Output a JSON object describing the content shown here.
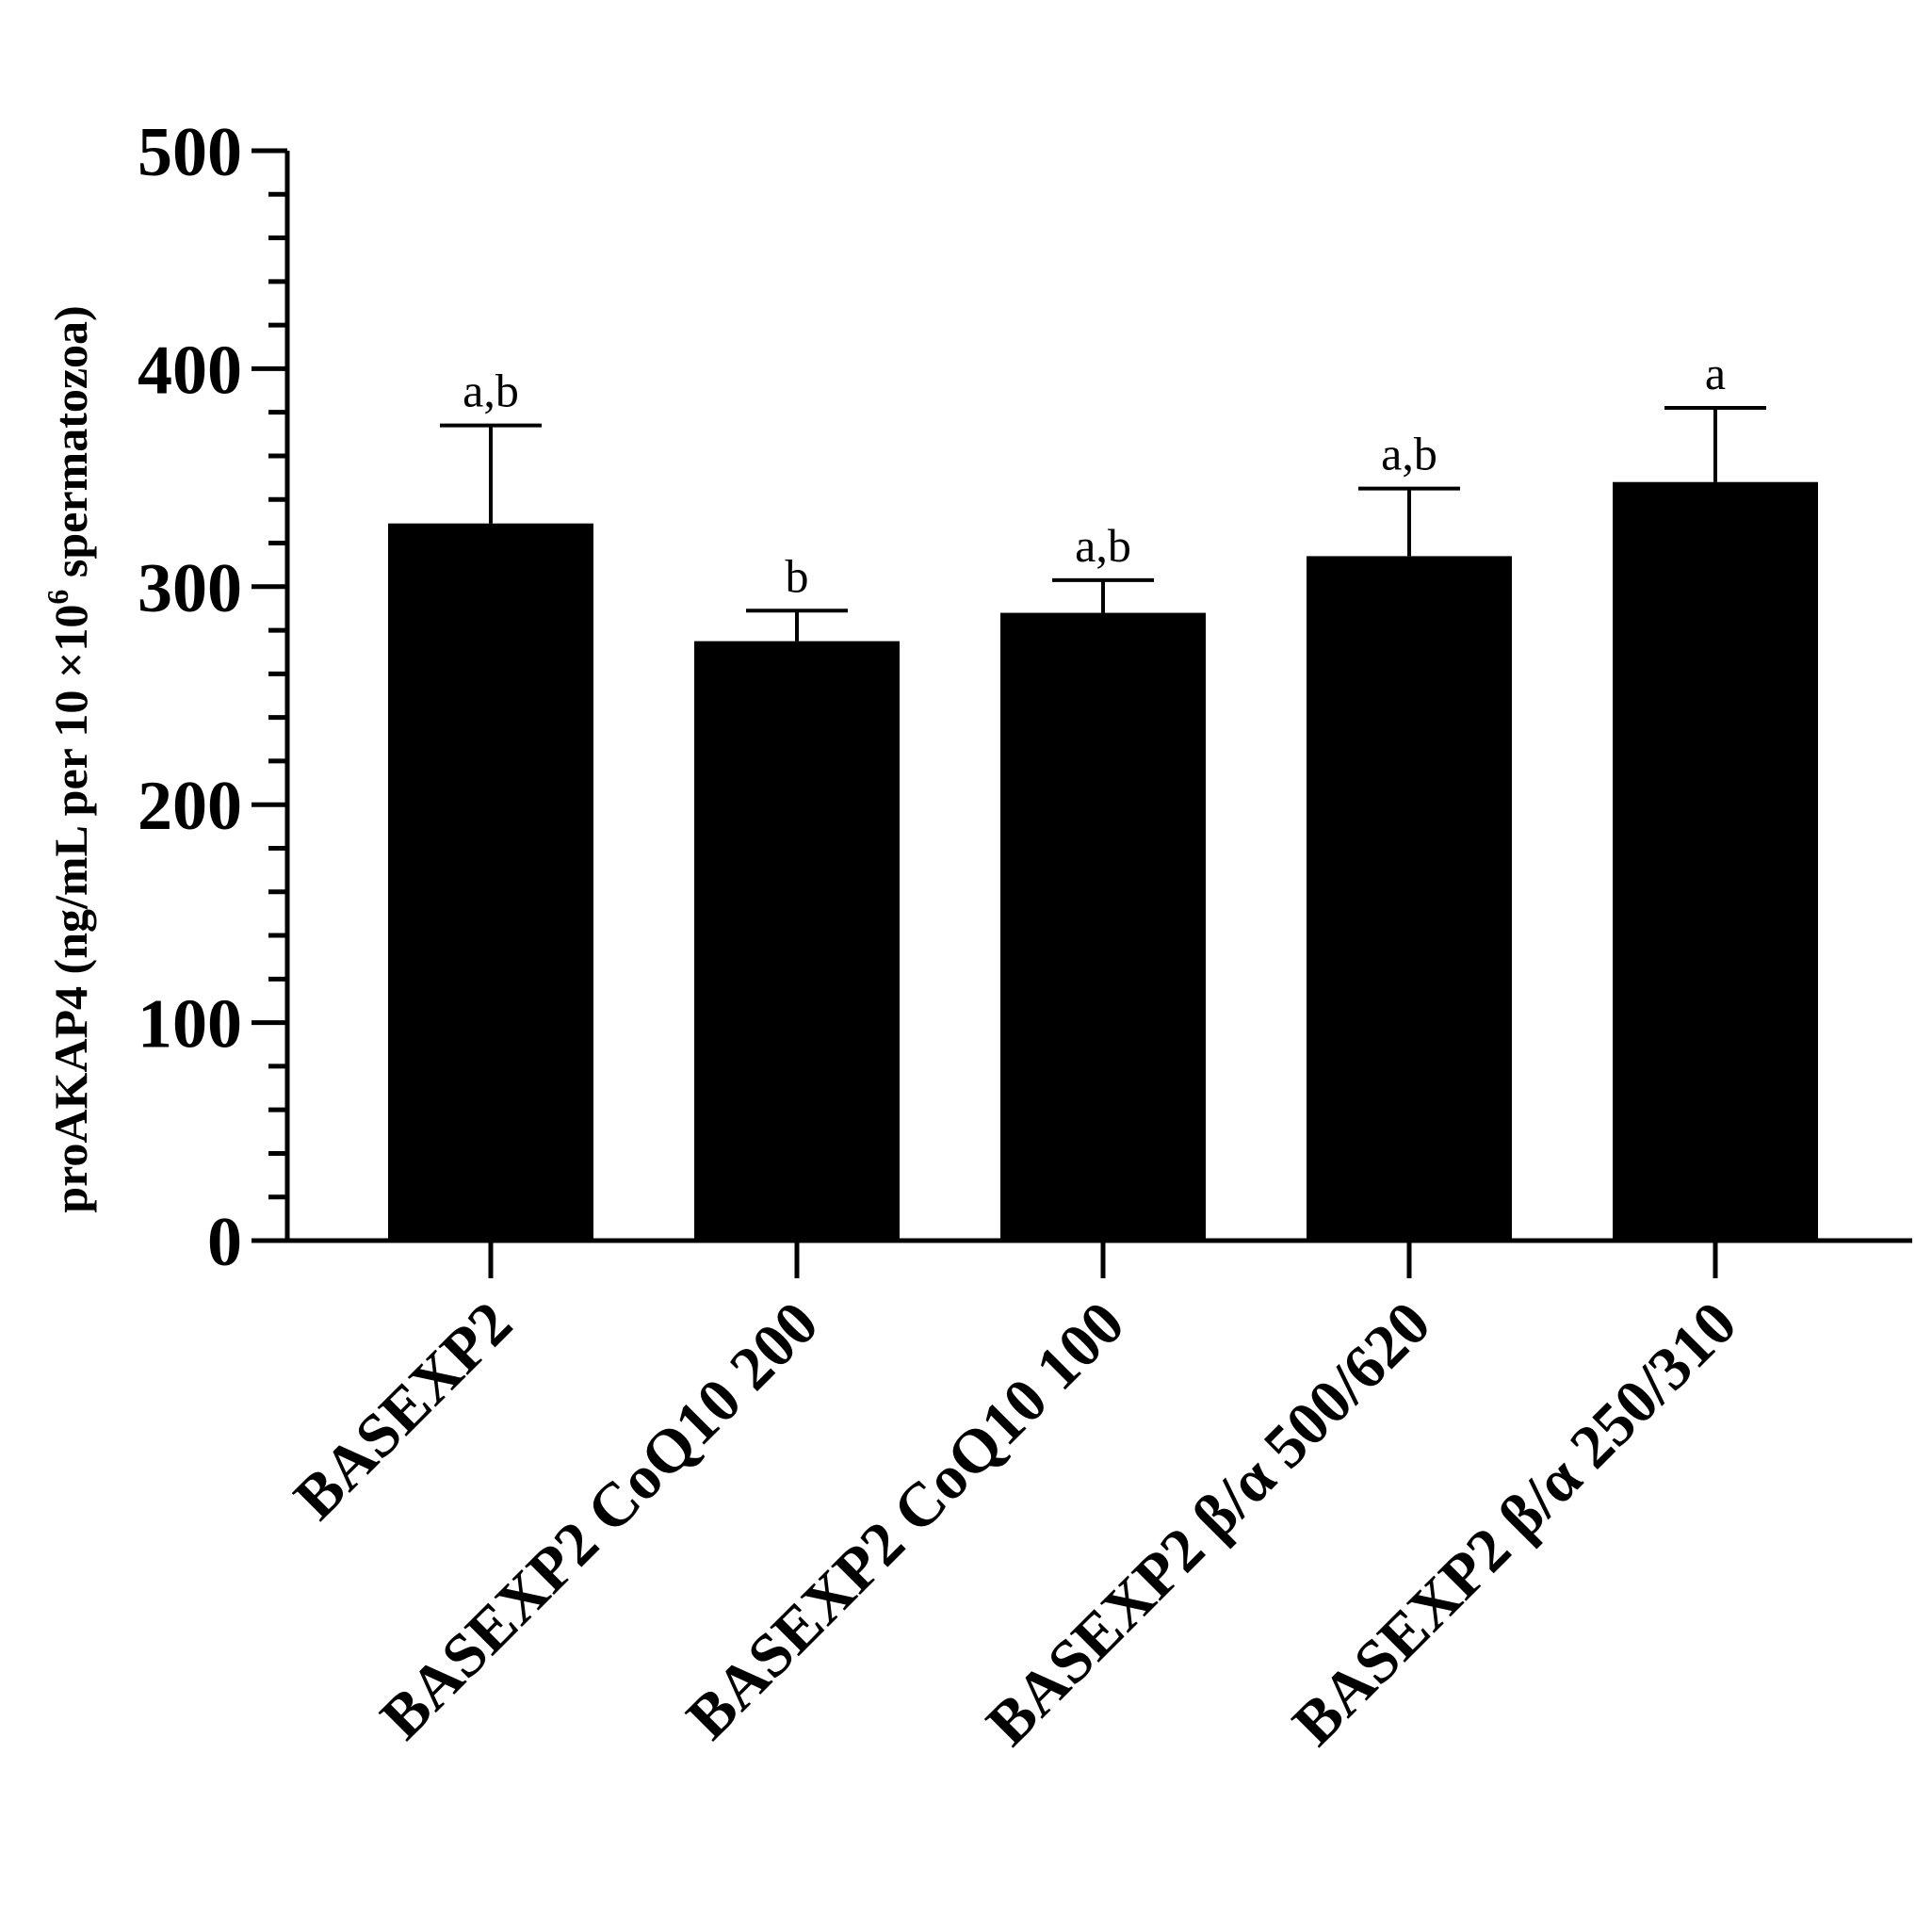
{
  "chart_data": {
    "type": "bar",
    "ylabel_main": "proAKAP4 (ng/mL per 10 ×10",
    "ylabel_sup": "6",
    "ylabel_tail": " spermatozoa)",
    "xlabel": "",
    "ylim": [
      0,
      500
    ],
    "yticks": [
      "0",
      "100",
      "200",
      "300",
      "400",
      "500"
    ],
    "categories": [
      "BASEXP2",
      "BASEXP2 CoQ10 200",
      "BASEXP2 CoQ10 100",
      "BASEXP2 β/α 500/620",
      "BASEXP2 β/α 250/310"
    ],
    "values": [
      329,
      275,
      288,
      314,
      348
    ],
    "errors": [
      45,
      14,
      15,
      31,
      34
    ],
    "significance": [
      "a,b",
      "b",
      "a,b",
      "a,b",
      "a"
    ],
    "bar_color": "#000000",
    "grid": false
  }
}
